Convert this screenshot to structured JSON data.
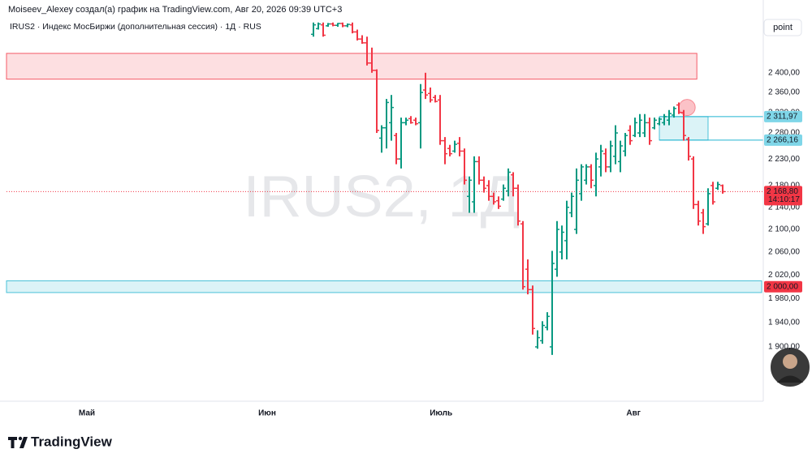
{
  "header": {
    "author_line": "Moiseev_Alexey создал(а) график на TradingView.com, Авг 20, 2026 09:39 UTC+3",
    "button": "point"
  },
  "footer": {
    "brand": "TradingView"
  },
  "chart_data": {
    "type": "ohlc",
    "title": "IRUS2 · Индекс МосБиржи (дополнительная сессия) · 1Д · RUS",
    "watermark": "IRUS2, 1Д",
    "x": [
      63,
      64,
      65,
      66,
      67,
      68,
      69,
      70,
      71,
      72,
      73,
      74,
      75,
      76,
      77,
      78,
      79,
      80,
      81,
      82,
      83,
      84,
      85,
      86,
      87,
      88,
      89,
      90,
      91,
      92,
      93,
      94,
      95,
      96,
      97,
      98,
      99,
      100,
      101,
      102,
      103,
      104,
      105,
      106,
      107,
      108,
      109,
      110,
      111,
      112,
      113,
      114,
      115,
      116,
      117,
      118,
      119,
      120,
      121,
      122,
      123,
      124,
      125,
      126,
      127,
      128,
      129,
      130,
      131,
      132,
      133,
      134,
      135,
      136,
      137,
      138,
      139,
      140,
      141,
      142,
      143,
      144,
      145,
      146,
      147
    ],
    "open": [
      2480,
      2492,
      2500,
      2498,
      2502,
      2499,
      2503,
      2498,
      2500,
      2485,
      2470,
      2462,
      2420,
      2405,
      2270,
      2290,
      2300,
      2275,
      2230,
      2300,
      2308,
      2305,
      2300,
      2365,
      2358,
      2350,
      2345,
      2265,
      2250,
      2245,
      2260,
      2245,
      2160,
      2150,
      2225,
      2190,
      2180,
      2160,
      2152,
      2155,
      2170,
      2200,
      2175,
      2110,
      2030,
      1995,
      1900,
      1910,
      1932,
      1900,
      2030,
      2060,
      2080,
      2130,
      2100,
      2165,
      2190,
      2215,
      2180,
      2215,
      2240,
      2215,
      2235,
      2225,
      2245,
      2285,
      2275,
      2280,
      2280,
      2300,
      2290,
      2298,
      2300,
      2305,
      2315,
      2335,
      2320,
      2268,
      2230,
      2145,
      2130,
      2110,
      2180,
      2175,
      2180
    ],
    "high": [
      2505,
      2505,
      2505,
      2504,
      2505,
      2504,
      2505,
      2503,
      2505,
      2490,
      2478,
      2475,
      2452,
      2407,
      2295,
      2347,
      2355,
      2280,
      2310,
      2310,
      2313,
      2310,
      2377,
      2400,
      2370,
      2355,
      2355,
      2272,
      2257,
      2265,
      2272,
      2250,
      2197,
      2235,
      2235,
      2197,
      2190,
      2167,
      2160,
      2182,
      2212,
      2205,
      2182,
      2115,
      2047,
      2002,
      1927,
      1942,
      1957,
      2062,
      2115,
      2107,
      2152,
      2167,
      2212,
      2220,
      2220,
      2220,
      2242,
      2257,
      2250,
      2265,
      2295,
      2265,
      2280,
      2295,
      2310,
      2317,
      2317,
      2310,
      2310,
      2310,
      2317,
      2325,
      2332,
      2340,
      2325,
      2272,
      2235,
      2152,
      2137,
      2175,
      2187,
      2187,
      2182
    ],
    "low": [
      2475,
      2490,
      2475,
      2496,
      2497,
      2496,
      2495,
      2495,
      2482,
      2467,
      2460,
      2415,
      2400,
      2280,
      2242,
      2250,
      2265,
      2220,
      2212,
      2295,
      2298,
      2295,
      2250,
      2347,
      2340,
      2340,
      2257,
      2220,
      2235,
      2242,
      2235,
      2182,
      2130,
      2130,
      2182,
      2167,
      2152,
      2145,
      2137,
      2152,
      2160,
      2160,
      2107,
      1995,
      1987,
      1920,
      1897,
      1905,
      1927,
      1887,
      2017,
      2047,
      2047,
      2122,
      2092,
      2152,
      2182,
      2175,
      2160,
      2197,
      2205,
      2205,
      2220,
      2205,
      2235,
      2257,
      2272,
      2272,
      2272,
      2257,
      2287,
      2295,
      2295,
      2295,
      2310,
      2317,
      2265,
      2227,
      2137,
      2107,
      2092,
      2107,
      2145,
      2172,
      2165
    ],
    "close": [
      2500,
      2502,
      2478,
      2502,
      2499,
      2503,
      2498,
      2501,
      2485,
      2470,
      2462,
      2420,
      2405,
      2285,
      2290,
      2340,
      2330,
      2230,
      2300,
      2305,
      2300,
      2298,
      2360,
      2355,
      2345,
      2342,
      2265,
      2240,
      2240,
      2258,
      2245,
      2190,
      2190,
      2225,
      2190,
      2175,
      2160,
      2150,
      2142,
      2175,
      2205,
      2175,
      2115,
      2000,
      1995,
      1930,
      1915,
      1935,
      1950,
      2040,
      2100,
      2095,
      2140,
      2160,
      2190,
      2215,
      2215,
      2190,
      2230,
      2245,
      2215,
      2255,
      2280,
      2255,
      2275,
      2265,
      2300,
      2305,
      2300,
      2265,
      2305,
      2307,
      2312,
      2318,
      2328,
      2320,
      2275,
      2235,
      2145,
      2115,
      2105,
      2165,
      2150,
      2182,
      2168.8
    ],
    "up_color": "#089981",
    "down_color": "#f23645",
    "xlim": [
      0,
      155
    ],
    "xticks": [
      {
        "value": 16.5,
        "label": "Май"
      },
      {
        "value": 53.5,
        "label": "Июн"
      },
      {
        "value": 89.2,
        "label": "Июль"
      },
      {
        "value": 128.7,
        "label": "Авг"
      }
    ],
    "ylim": [
      1814,
      2522
    ],
    "log_scale": true,
    "yticks": [
      {
        "value": 1900,
        "label": "1 900,00"
      },
      {
        "value": 1940,
        "label": "1 940,00"
      },
      {
        "value": 1980,
        "label": "1 980,00"
      },
      {
        "value": 2020,
        "label": "2 020,00"
      },
      {
        "value": 2060,
        "label": "2 060,00"
      },
      {
        "value": 2100,
        "label": "2 100,00"
      },
      {
        "value": 2140,
        "label": "2 140,00"
      },
      {
        "value": 2180,
        "label": "2 180,00"
      },
      {
        "value": 2230,
        "label": "2 230,00"
      },
      {
        "value": 2280,
        "label": "2 280,00"
      },
      {
        "value": 2320,
        "label": "2 320,00"
      },
      {
        "value": 2360,
        "label": "2 360,00"
      },
      {
        "value": 2400,
        "label": "2 400,00"
      }
    ],
    "zones": [
      {
        "x": [
          0,
          141.7
        ],
        "y": [
          2387,
          2440
        ],
        "color": "#f23645"
      },
      {
        "x": [
          134,
          144
        ],
        "y": [
          2266.16,
          2311.97
        ],
        "color": "#22b4d0"
      },
      {
        "x": [
          0,
          155
        ],
        "y": [
          1990,
          2010
        ],
        "color": "#22b4d0"
      }
    ],
    "levels": [
      {
        "value": 2311.97,
        "label": "2 311,97",
        "color": "#7fd6e8",
        "text_color": "#131722",
        "line": "solid",
        "from": 134
      },
      {
        "value": 2266.16,
        "label": "2 266,16",
        "color": "#7fd6e8",
        "text_color": "#131722",
        "line": "solid",
        "from": 134
      },
      {
        "value": 2168.8,
        "label": "2 168,80",
        "sublabel": "14:10:17",
        "color": "#f23645",
        "text_color": "#ffffff",
        "line": "dotted",
        "from": 0
      },
      {
        "value": 2000,
        "label": "2 000,00",
        "color": "#f23645",
        "text_color": "#ffffff"
      }
    ],
    "marker": {
      "x": 139.7,
      "y": 2330,
      "color": "#f23645"
    }
  }
}
